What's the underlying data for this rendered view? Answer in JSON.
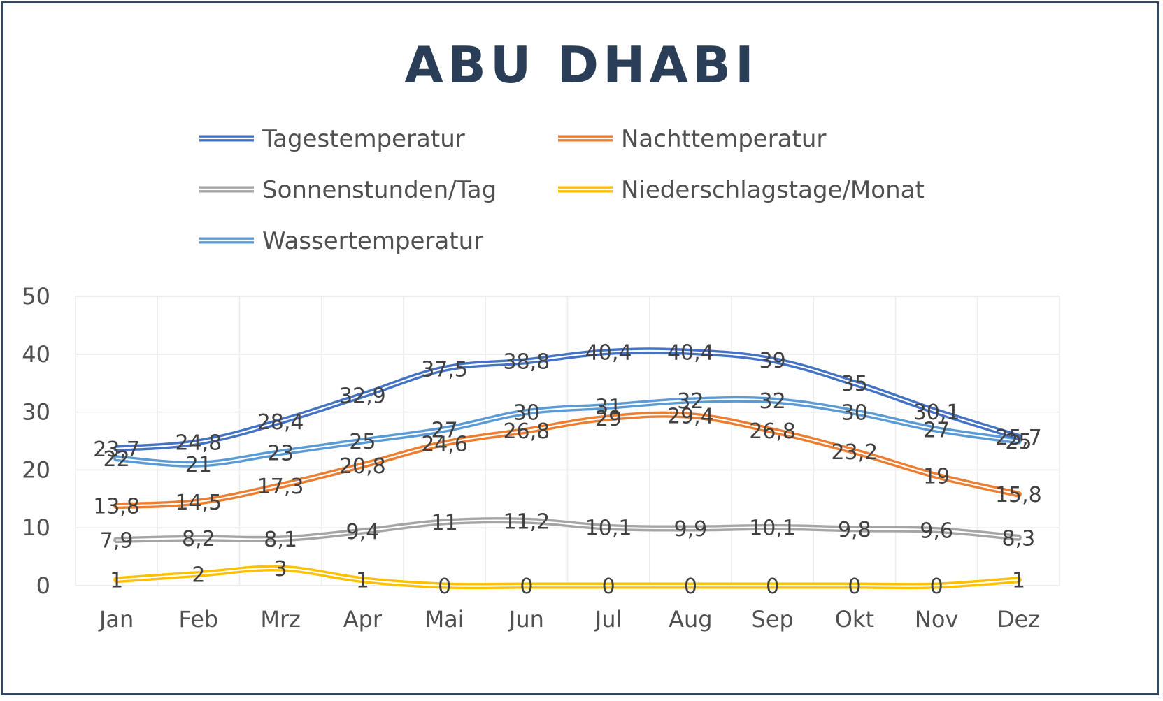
{
  "chart_data": {
    "type": "line",
    "title": "ABU DHABI",
    "categories": [
      "Jan",
      "Feb",
      "Mrz",
      "Apr",
      "Mai",
      "Jun",
      "Jul",
      "Aug",
      "Sep",
      "Okt",
      "Nov",
      "Dez"
    ],
    "ylim": [
      0,
      50
    ],
    "yticks": [
      0,
      10,
      20,
      30,
      40,
      50
    ],
    "grid": true,
    "legend_position": "top",
    "series": [
      {
        "name": "Tagestemperatur",
        "color": "#4472c4",
        "values": [
          23.7,
          24.8,
          28.4,
          32.9,
          37.5,
          38.8,
          40.4,
          40.4,
          39,
          35,
          30.1,
          25.7
        ],
        "labels": [
          "23,7",
          "24,8",
          "28,4",
          "32,9",
          "37,5",
          "38,8",
          "40,4",
          "40,4",
          "39",
          "35",
          "30,1",
          "25,7"
        ]
      },
      {
        "name": "Nachttemperatur",
        "color": "#ed7d31",
        "values": [
          13.8,
          14.5,
          17.3,
          20.8,
          24.6,
          26.8,
          29,
          29.4,
          26.8,
          23.2,
          19,
          15.8
        ],
        "labels": [
          "13,8",
          "14,5",
          "17,3",
          "20,8",
          "24,6",
          "26,8",
          "29",
          "29,4",
          "26,8",
          "23,2",
          "19",
          "15,8"
        ]
      },
      {
        "name": "Sonnenstunden/Tag",
        "color": "#a5a5a5",
        "values": [
          7.9,
          8.2,
          8.1,
          9.4,
          11,
          11.2,
          10.1,
          9.9,
          10.1,
          9.8,
          9.6,
          8.3
        ],
        "labels": [
          "7,9",
          "8,2",
          "8,1",
          "9,4",
          "11",
          "11,2",
          "10,1",
          "9,9",
          "10,1",
          "9,8",
          "9,6",
          "8,3"
        ]
      },
      {
        "name": "Niederschlagstage/Monat",
        "color": "#ffc000",
        "values": [
          1,
          2,
          3,
          1,
          0,
          0,
          0,
          0,
          0,
          0,
          0,
          1
        ],
        "labels": [
          "1",
          "2",
          "3",
          "1",
          "0",
          "0",
          "0",
          "0",
          "0",
          "0",
          "0",
          "1"
        ]
      },
      {
        "name": "Wassertemperatur",
        "color": "#5b9bd5",
        "values": [
          22,
          21,
          23,
          25,
          27,
          30,
          31,
          32,
          32,
          30,
          27,
          25
        ],
        "labels": [
          "22",
          "21",
          "23",
          "25",
          "27",
          "30",
          "31",
          "32",
          "32",
          "30",
          "27",
          "25"
        ]
      }
    ]
  }
}
